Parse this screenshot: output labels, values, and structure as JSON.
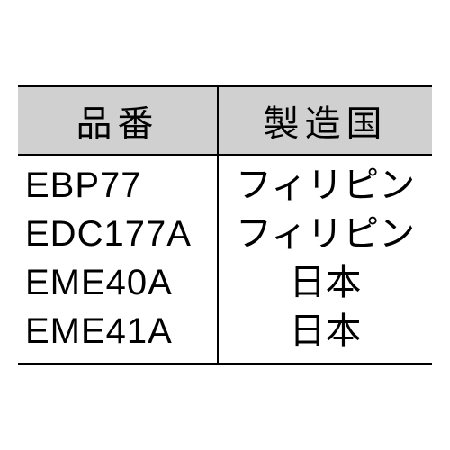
{
  "table": {
    "columns": [
      "品番",
      "製造国"
    ],
    "rows": [
      [
        "EBP77",
        "フィリピン"
      ],
      [
        "EDC177A",
        "フィリピン"
      ],
      [
        "EME40A",
        "日本"
      ],
      [
        "EME41A",
        "日本"
      ]
    ],
    "header_bg": "#d0d0d0",
    "border_color": "#000000",
    "text_color": "#000000",
    "font_size": 40,
    "col_widths": [
      "50%",
      "50%"
    ]
  }
}
